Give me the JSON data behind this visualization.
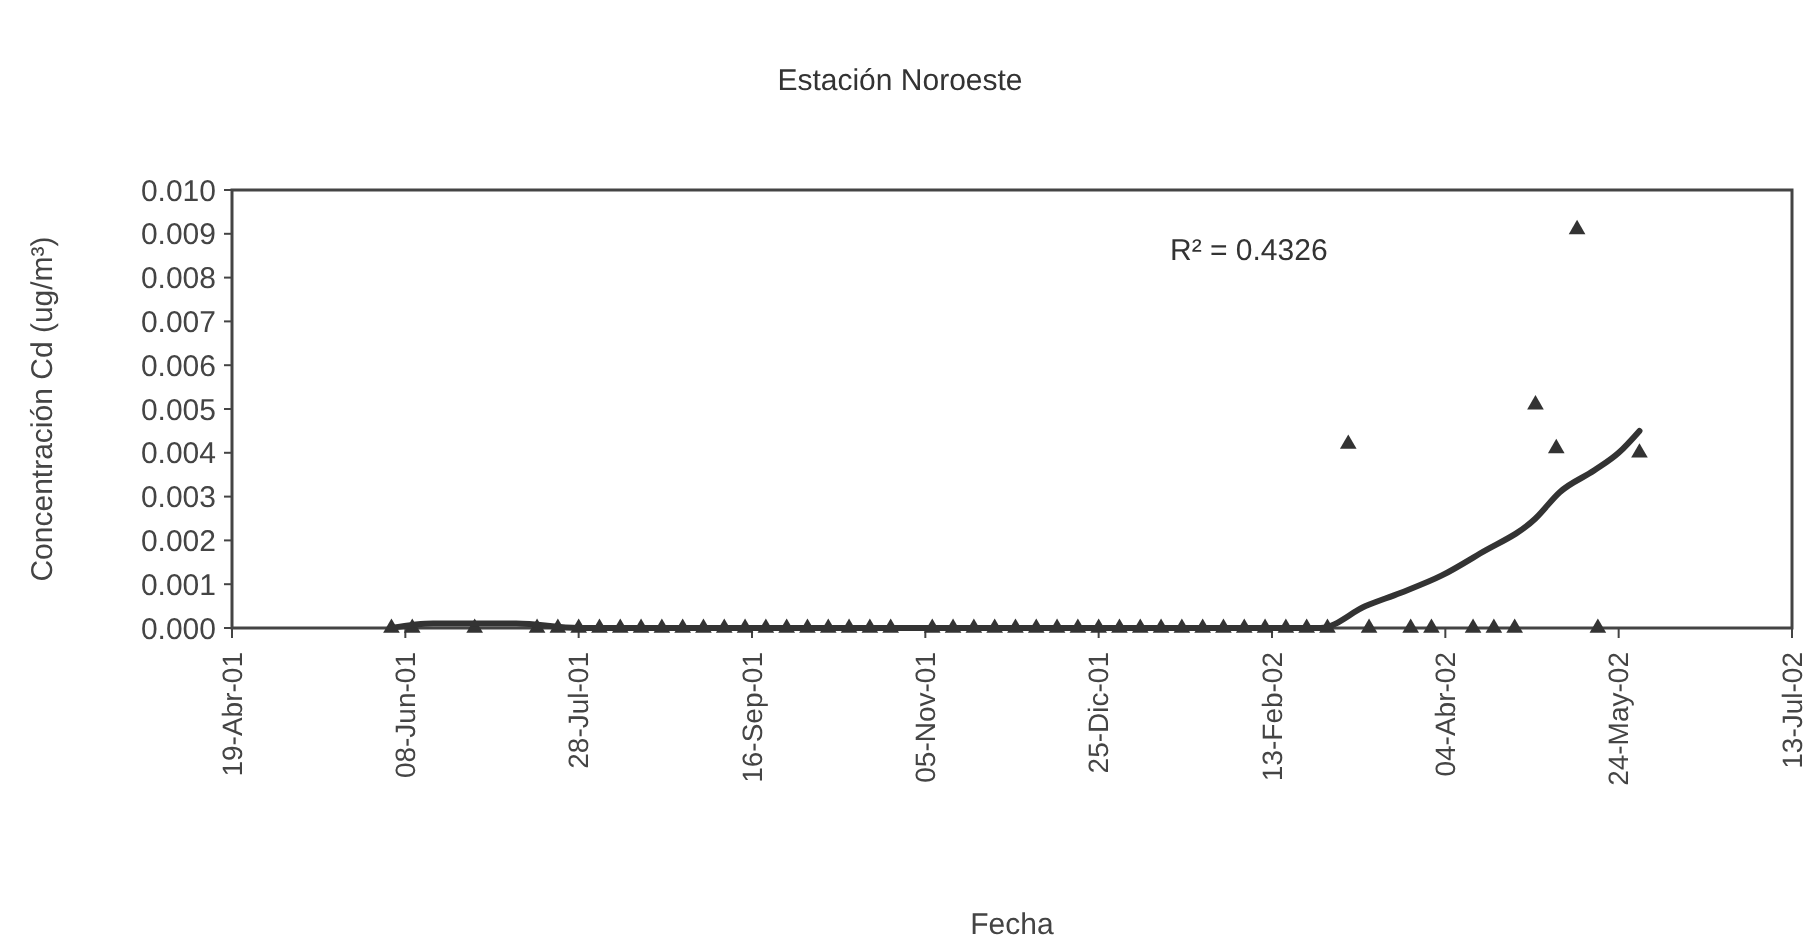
{
  "chart_data": {
    "type": "scatter",
    "title": "Estación Noroeste",
    "xlabel": "Fecha",
    "ylabel": "Concentración Cd (ug/m³)",
    "annotations": [
      "R² = 0.4326"
    ],
    "xlim": [
      "2001-04-19",
      "2002-07-13"
    ],
    "xticks": [
      {
        "value": "2001-04-19",
        "label": "19-Abr-01"
      },
      {
        "value": "2001-06-08",
        "label": "08-Jun-01"
      },
      {
        "value": "2001-07-28",
        "label": "28-Jul-01"
      },
      {
        "value": "2001-09-16",
        "label": "16-Sep-01"
      },
      {
        "value": "2001-11-05",
        "label": "05-Nov-01"
      },
      {
        "value": "2001-12-25",
        "label": "25-Dic-01"
      },
      {
        "value": "2002-02-13",
        "label": "13-Feb-02"
      },
      {
        "value": "2002-04-04",
        "label": "04-Abr-02"
      },
      {
        "value": "2002-05-24",
        "label": "24-May-02"
      },
      {
        "value": "2002-07-13",
        "label": "13-Jul-02"
      }
    ],
    "ylim": [
      0,
      0.01
    ],
    "yticks": [
      {
        "value": 0,
        "label": "0.000"
      },
      {
        "value": 0.001,
        "label": "0.001"
      },
      {
        "value": 0.002,
        "label": "0.002"
      },
      {
        "value": 0.003,
        "label": "0.003"
      },
      {
        "value": 0.004,
        "label": "0.004"
      },
      {
        "value": 0.005,
        "label": "0.005"
      },
      {
        "value": 0.006,
        "label": "0.006"
      },
      {
        "value": 0.007,
        "label": "0.007"
      },
      {
        "value": 0.008,
        "label": "0.008"
      },
      {
        "value": 0.009,
        "label": "0.009"
      },
      {
        "value": 0.01,
        "label": "0.010"
      }
    ],
    "grid": false,
    "series": [
      {
        "marker": "triangle",
        "color": "#333333",
        "x": [
          "2001-06-04",
          "2001-06-10",
          "2001-06-28",
          "2001-07-16",
          "2001-07-22",
          "2001-07-28",
          "2001-08-03",
          "2001-08-09",
          "2001-08-15",
          "2001-08-21",
          "2001-08-27",
          "2001-09-02",
          "2001-09-08",
          "2001-09-14",
          "2001-09-20",
          "2001-09-26",
          "2001-10-02",
          "2001-10-08",
          "2001-10-14",
          "2001-10-20",
          "2001-10-26",
          "2001-11-07",
          "2001-11-13",
          "2001-11-19",
          "2001-11-25",
          "2001-12-01",
          "2001-12-07",
          "2001-12-13",
          "2001-12-19",
          "2001-12-25",
          "2001-12-31",
          "2002-01-06",
          "2002-01-12",
          "2002-01-18",
          "2002-01-24",
          "2002-01-30",
          "2002-02-05",
          "2002-02-11",
          "2002-02-17",
          "2002-02-23",
          "2002-03-01",
          "2002-03-07",
          "2002-03-13",
          "2002-03-25",
          "2002-03-31",
          "2002-04-12",
          "2002-04-18",
          "2002-04-24",
          "2002-04-30",
          "2002-05-06",
          "2002-05-12",
          "2002-05-18",
          "2002-05-30"
        ],
        "values": [
          0,
          0,
          0,
          0,
          0,
          0,
          0,
          0,
          0,
          0,
          0,
          0,
          0,
          0,
          0,
          0,
          0,
          0,
          0,
          0,
          0,
          0,
          0,
          0,
          0,
          0,
          0,
          0,
          0,
          0,
          0,
          0,
          0,
          0,
          0,
          0,
          0,
          0,
          0,
          0,
          0,
          0.0042,
          0,
          0,
          0,
          0,
          0,
          0,
          0.0051,
          0.0041,
          0.0091,
          0,
          0.004
        ]
      },
      {
        "type": "line",
        "color": "#333333",
        "line_style": "solid",
        "x": [
          "2001-06-04",
          "2001-06-16",
          "2001-07-10",
          "2001-07-28",
          "2001-11-05",
          "2002-02-13",
          "2002-02-27",
          "2002-03-12",
          "2002-03-22",
          "2002-04-03",
          "2002-04-14",
          "2002-04-30",
          "2002-05-07",
          "2002-05-17",
          "2002-05-24",
          "2002-05-30"
        ],
        "values": [
          0,
          0.0001,
          0.0001,
          0,
          0,
          0,
          0,
          0.0005,
          0.0008,
          0.0012,
          0.0017,
          0.0025,
          0.0031,
          0.0036,
          0.004,
          0.0045
        ]
      }
    ]
  }
}
